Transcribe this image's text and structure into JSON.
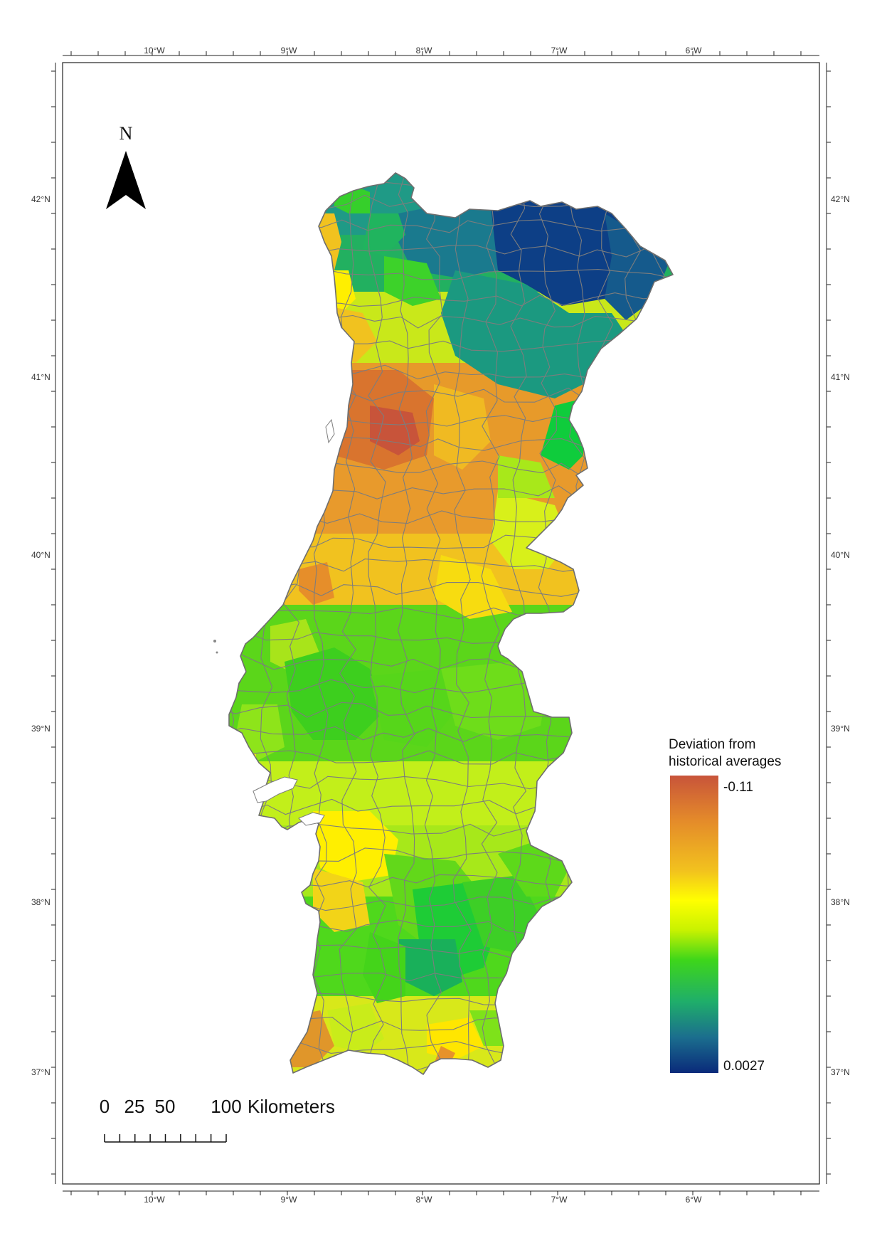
{
  "map": {
    "longitude_labels": [
      "10°W",
      "9°W",
      "8°W",
      "7°W",
      "6°W"
    ],
    "latitude_labels": [
      "42°N",
      "41°N",
      "40°N",
      "39°N",
      "38°N",
      "37°N"
    ],
    "north_arrow": {
      "label": "N",
      "icon": "north-arrow-icon"
    },
    "legend": {
      "title_line1": "Deviation from",
      "title_line2": "historical averages",
      "max_label": "-0.11",
      "min_label": "0.0027",
      "max_value": -0.11,
      "min_value": 0.0027,
      "colors": [
        "#c8543a",
        "#e48a2a",
        "#f2c21e",
        "#ffff00",
        "#c8f200",
        "#3ed61a",
        "#1fae6a",
        "#1b6e8e",
        "#0a2a7a"
      ]
    },
    "scale_bar": {
      "labels": [
        "0",
        "25",
        "50",
        "100"
      ],
      "unit": "Kilometers"
    }
  }
}
